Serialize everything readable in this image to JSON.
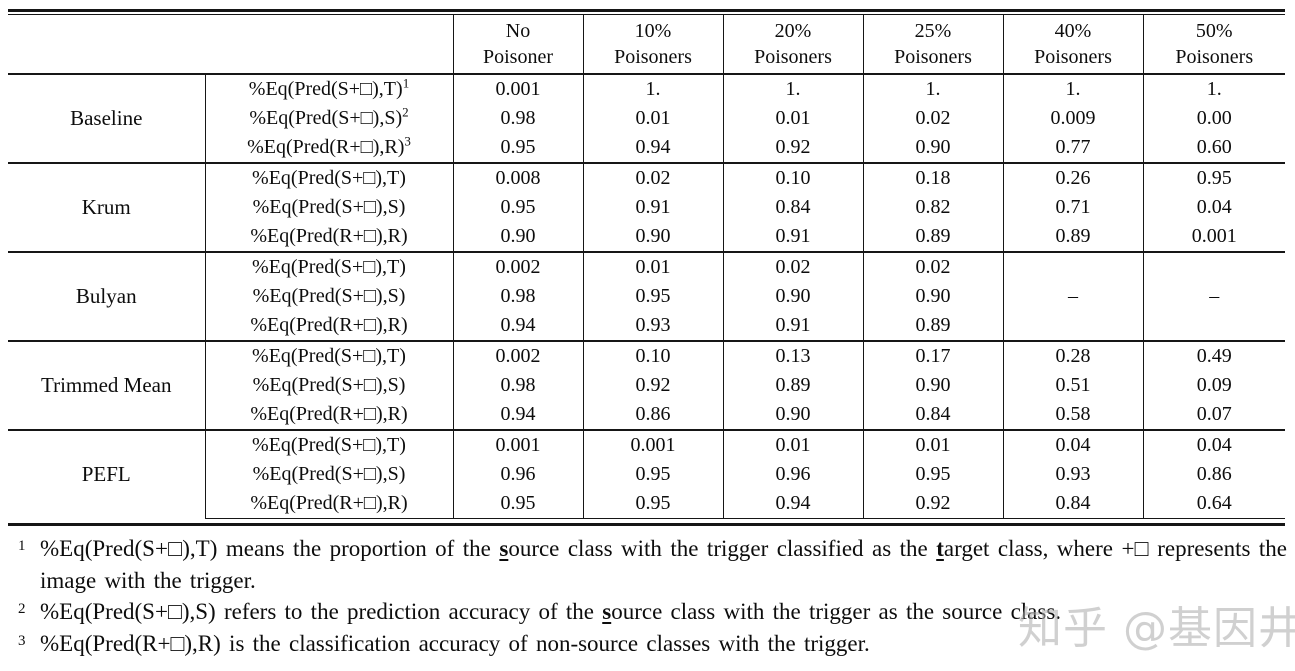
{
  "table": {
    "columns": [
      {
        "line1": "No",
        "line2": "Poisoner"
      },
      {
        "line1": "10%",
        "line2": "Poisoners"
      },
      {
        "line1": "20%",
        "line2": "Poisoners"
      },
      {
        "line1": "25%",
        "line2": "Poisoners"
      },
      {
        "line1": "40%",
        "line2": "Poisoners"
      },
      {
        "line1": "50%",
        "line2": "Poisoners"
      }
    ],
    "groups": [
      {
        "name": "Baseline",
        "rows": [
          {
            "label": "%Eq(Pred(S+□),T)",
            "sup": "1",
            "values": [
              "0.001",
              "1.",
              "1.",
              "1.",
              "1.",
              "1."
            ]
          },
          {
            "label": "%Eq(Pred(S+□),S)",
            "sup": "2",
            "values": [
              "0.98",
              "0.01",
              "0.01",
              "0.02",
              "0.009",
              "0.00"
            ]
          },
          {
            "label": "%Eq(Pred(R+□),R)",
            "sup": "3",
            "values": [
              "0.95",
              "0.94",
              "0.92",
              "0.90",
              "0.77",
              "0.60"
            ]
          }
        ]
      },
      {
        "name": "Krum",
        "rows": [
          {
            "label": "%Eq(Pred(S+□),T)",
            "values": [
              "0.008",
              "0.02",
              "0.10",
              "0.18",
              "0.26",
              "0.95"
            ]
          },
          {
            "label": "%Eq(Pred(S+□),S)",
            "values": [
              "0.95",
              "0.91",
              "0.84",
              "0.82",
              "0.71",
              "0.04"
            ]
          },
          {
            "label": "%Eq(Pred(R+□),R)",
            "values": [
              "0.90",
              "0.90",
              "0.91",
              "0.89",
              "0.89",
              "0.001"
            ]
          }
        ]
      },
      {
        "name": "Bulyan",
        "rows": [
          {
            "label": "%Eq(Pred(S+□),T)",
            "values": [
              "0.002",
              "0.01",
              "0.02",
              "0.02"
            ]
          },
          {
            "label": "%Eq(Pred(S+□),S)",
            "values": [
              "0.98",
              "0.95",
              "0.90",
              "0.90"
            ]
          },
          {
            "label": "%Eq(Pred(R+□),R)",
            "values": [
              "0.94",
              "0.93",
              "0.91",
              "0.89"
            ]
          }
        ],
        "merged_tail": [
          "–",
          "–"
        ]
      },
      {
        "name": "Trimmed Mean",
        "rows": [
          {
            "label": "%Eq(Pred(S+□),T)",
            "values": [
              "0.002",
              "0.10",
              "0.13",
              "0.17",
              "0.28",
              "0.49"
            ]
          },
          {
            "label": "%Eq(Pred(S+□),S)",
            "values": [
              "0.98",
              "0.92",
              "0.89",
              "0.90",
              "0.51",
              "0.09"
            ]
          },
          {
            "label": "%Eq(Pred(R+□),R)",
            "values": [
              "0.94",
              "0.86",
              "0.90",
              "0.84",
              "0.58",
              "0.07"
            ]
          }
        ]
      },
      {
        "name": "PEFL",
        "rows": [
          {
            "label": "%Eq(Pred(S+□),T)",
            "values": [
              "0.001",
              "0.001",
              "0.01",
              "0.01",
              "0.04",
              "0.04"
            ]
          },
          {
            "label": "%Eq(Pred(S+□),S)",
            "values": [
              "0.96",
              "0.95",
              "0.96",
              "0.95",
              "0.93",
              "0.86"
            ]
          },
          {
            "label": "%Eq(Pred(R+□),R)",
            "values": [
              "0.95",
              "0.95",
              "0.94",
              "0.92",
              "0.84",
              "0.64"
            ]
          }
        ]
      }
    ]
  },
  "footnotes": [
    {
      "sup": "1",
      "segments": [
        {
          "text": "%Eq(Pred(S+□),T) means the proportion of the "
        },
        {
          "text": "s",
          "emph": true
        },
        {
          "text": "ource class with the trigger classified as the "
        },
        {
          "text": "t",
          "emph": true
        },
        {
          "text": "arget class, where +□ represents the image with the trigger."
        }
      ]
    },
    {
      "sup": "2",
      "segments": [
        {
          "text": "%Eq(Pred(S+□),S) refers to the prediction accuracy of the "
        },
        {
          "text": "s",
          "emph": true
        },
        {
          "text": "ource class with the trigger as the source class."
        }
      ]
    },
    {
      "sup": "3",
      "segments": [
        {
          "text": "%Eq(Pred(R+□),R) is the classification accuracy of non-source classes with the trigger."
        }
      ]
    }
  ],
  "watermark": {
    "text": "知乎 @基因井"
  }
}
